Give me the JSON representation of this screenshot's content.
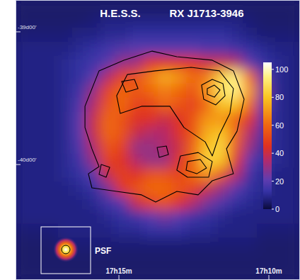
{
  "chart_data": {
    "type": "heatmap",
    "title": "H.E.S.S.",
    "subtitle": "RX J1713-3946",
    "psf_label": "PSF",
    "xlim": [
      17.3074,
      17.1494
    ],
    "ylim": [
      -40.87,
      -38.76
    ],
    "xticks": [
      {
        "value": 17.25,
        "label": "17h15m"
      },
      {
        "value": 17.1667,
        "label": "17h10m"
      }
    ],
    "yticks": [
      {
        "value": -39,
        "label": "-39d00'"
      },
      {
        "value": -40,
        "label": "-40d00'"
      }
    ],
    "colorbar_range": [
      0,
      105
    ],
    "colorbar_ticks": [
      0,
      20,
      40,
      60,
      80,
      100
    ],
    "cells": [
      [
        5,
        5,
        5,
        5,
        5,
        5,
        5,
        5,
        5,
        5,
        5,
        5,
        5,
        5,
        5,
        5,
        5,
        5,
        5,
        5
      ],
      [
        5,
        5,
        5,
        5,
        5,
        6,
        8,
        8,
        8,
        8,
        8,
        8,
        8,
        8,
        8,
        8,
        6,
        5,
        5,
        5
      ],
      [
        6,
        6,
        6,
        6,
        8,
        8,
        10,
        10,
        12,
        12,
        12,
        12,
        12,
        12,
        12,
        10,
        8,
        6,
        6,
        6
      ],
      [
        8,
        8,
        8,
        8,
        10,
        12,
        15,
        18,
        20,
        20,
        20,
        20,
        20,
        18,
        18,
        15,
        12,
        10,
        8,
        8
      ],
      [
        8,
        8,
        8,
        10,
        12,
        15,
        20,
        30,
        32,
        45,
        45,
        45,
        45,
        40,
        40,
        35,
        20,
        12,
        10,
        8
      ],
      [
        8,
        8,
        8,
        10,
        12,
        20,
        35,
        50,
        55,
        65,
        75,
        70,
        60,
        65,
        85,
        95,
        60,
        20,
        10,
        8
      ],
      [
        8,
        8,
        8,
        10,
        15,
        30,
        50,
        60,
        55,
        60,
        65,
        60,
        55,
        70,
        90,
        95,
        70,
        25,
        10,
        8
      ],
      [
        8,
        8,
        8,
        10,
        18,
        35,
        55,
        60,
        50,
        50,
        60,
        55,
        50,
        60,
        80,
        80,
        60,
        20,
        10,
        8
      ],
      [
        8,
        8,
        8,
        10,
        20,
        40,
        60,
        55,
        45,
        45,
        40,
        45,
        55,
        70,
        70,
        60,
        45,
        15,
        10,
        8
      ],
      [
        8,
        8,
        8,
        10,
        20,
        40,
        60,
        55,
        40,
        35,
        35,
        45,
        55,
        75,
        80,
        60,
        35,
        15,
        10,
        8
      ],
      [
        8,
        8,
        8,
        10,
        18,
        35,
        55,
        50,
        30,
        30,
        35,
        40,
        60,
        80,
        85,
        55,
        30,
        12,
        10,
        8
      ],
      [
        8,
        8,
        8,
        10,
        15,
        30,
        50,
        45,
        35,
        30,
        30,
        45,
        60,
        85,
        80,
        45,
        20,
        12,
        10,
        8
      ],
      [
        8,
        8,
        8,
        10,
        12,
        20,
        40,
        50,
        45,
        55,
        55,
        50,
        60,
        70,
        55,
        35,
        15,
        10,
        8,
        8
      ],
      [
        8,
        8,
        8,
        8,
        10,
        12,
        25,
        45,
        55,
        60,
        60,
        55,
        50,
        40,
        30,
        20,
        12,
        10,
        8,
        8
      ],
      [
        8,
        8,
        8,
        8,
        8,
        10,
        15,
        20,
        40,
        50,
        55,
        45,
        35,
        25,
        18,
        12,
        10,
        8,
        8,
        8
      ],
      [
        8,
        8,
        8,
        8,
        8,
        8,
        10,
        12,
        15,
        20,
        25,
        20,
        15,
        12,
        10,
        8,
        8,
        8,
        8,
        8
      ],
      [
        6,
        6,
        6,
        8,
        8,
        8,
        8,
        10,
        10,
        12,
        12,
        12,
        10,
        10,
        8,
        8,
        8,
        6,
        6,
        6
      ],
      [
        5,
        5,
        5,
        6,
        6,
        6,
        6,
        6,
        6,
        6,
        6,
        6,
        6,
        6,
        6,
        6,
        6,
        5,
        5,
        5
      ],
      [
        5,
        5,
        5,
        5,
        5,
        5,
        5,
        5,
        5,
        5,
        5,
        5,
        5,
        5,
        5,
        5,
        5,
        5,
        5,
        5
      ],
      [
        5,
        5,
        5,
        5,
        5,
        5,
        5,
        5,
        5,
        5,
        5,
        5,
        5,
        5,
        5,
        5,
        5,
        5,
        5,
        5
      ]
    ],
    "contours": [
      [
        [
          4.88,
          7.59
        ],
        [
          5.87,
          5.06
        ],
        [
          7.61,
          4.3
        ],
        [
          9.6,
          3.65
        ],
        [
          11.34,
          4.05
        ],
        [
          13.83,
          4.3
        ],
        [
          15.32,
          5.06
        ],
        [
          16.07,
          7.09
        ],
        [
          15.57,
          9.37
        ],
        [
          14.83,
          10.63
        ],
        [
          15.32,
          12.41
        ],
        [
          13.83,
          12.91
        ],
        [
          12.84,
          13.92
        ],
        [
          11.34,
          13.67
        ],
        [
          9.85,
          14.43
        ],
        [
          8.86,
          13.92
        ],
        [
          7.11,
          13.67
        ],
        [
          5.37,
          13.42
        ],
        [
          5.12,
          12.41
        ],
        [
          5.87,
          11.9
        ],
        [
          5.37,
          10.63
        ],
        [
          4.88,
          9.11
        ]
      ],
      [
        [
          7.11,
          6.84
        ],
        [
          7.86,
          5.32
        ],
        [
          9.85,
          5.06
        ],
        [
          12.34,
          4.81
        ],
        [
          14.33,
          5.06
        ],
        [
          15.32,
          6.33
        ],
        [
          15.07,
          8.1
        ],
        [
          14.33,
          9.62
        ],
        [
          13.83,
          11.14
        ],
        [
          13.33,
          10.13
        ],
        [
          11.84,
          9.11
        ],
        [
          10.85,
          7.59
        ],
        [
          8.86,
          7.59
        ],
        [
          7.36,
          8.1
        ]
      ],
      [
        [
          13.08,
          6.08
        ],
        [
          13.83,
          5.67
        ],
        [
          14.58,
          5.97
        ],
        [
          14.73,
          6.84
        ],
        [
          14.08,
          7.49
        ],
        [
          13.23,
          7.09
        ]
      ],
      [
        [
          13.48,
          6.33
        ],
        [
          13.98,
          6.08
        ],
        [
          14.38,
          6.43
        ],
        [
          13.98,
          6.94
        ],
        [
          13.48,
          6.73
        ]
      ],
      [
        [
          11.59,
          11.14
        ],
        [
          12.84,
          10.89
        ],
        [
          13.83,
          11.54
        ],
        [
          13.58,
          12.66
        ],
        [
          12.09,
          12.66
        ],
        [
          11.34,
          12.15
        ]
      ],
      [
        [
          12.09,
          11.54
        ],
        [
          12.99,
          11.39
        ],
        [
          13.43,
          12.0
        ],
        [
          12.74,
          12.41
        ],
        [
          11.99,
          12.15
        ]
      ],
      [
        [
          9.95,
          10.53
        ],
        [
          10.6,
          10.43
        ],
        [
          10.75,
          11.04
        ],
        [
          10.1,
          11.24
        ]
      ],
      [
        [
          6.02,
          11.75
        ],
        [
          6.62,
          11.95
        ],
        [
          6.37,
          12.66
        ],
        [
          5.87,
          12.46
        ]
      ],
      [
        [
          7.46,
          5.82
        ],
        [
          8.36,
          5.67
        ],
        [
          8.61,
          6.33
        ],
        [
          7.76,
          6.58
        ]
      ]
    ]
  }
}
